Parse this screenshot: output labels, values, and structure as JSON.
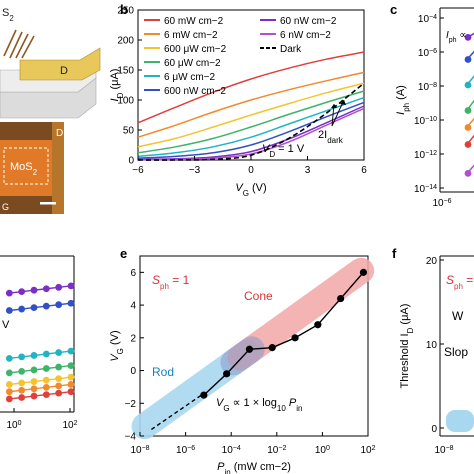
{
  "panel_a": {
    "mos2_top": "S",
    "mos2_top_sub": "2",
    "contact_label": "D",
    "chip_contact": "D",
    "chip_mos2": "MoS",
    "chip_mos2_sub": "2",
    "chip_corner": "G"
  },
  "panel_c": {
    "letter": "c",
    "ylabel": "I",
    "ylabel_sub": "ph",
    "ylabel_unit": " (A)",
    "annotation": "I",
    "annotation_sub": "ph",
    "annotation_tail": " ∝",
    "yticks": [
      {
        "base": "10",
        "exp": "−4"
      },
      {
        "base": "10",
        "exp": "−6"
      },
      {
        "base": "10",
        "exp": "−8"
      },
      {
        "base": "10",
        "exp": "−10"
      },
      {
        "base": "10",
        "exp": "−12"
      },
      {
        "base": "10",
        "exp": "−14"
      }
    ],
    "xticks": [
      {
        "base": "10",
        "exp": "−6"
      }
    ]
  },
  "panel_d": {
    "xticks": [
      {
        "base": "10",
        "exp": "0"
      },
      {
        "base": "10",
        "exp": "2"
      }
    ],
    "label_v": "V"
  },
  "panel_f": {
    "letter": "f",
    "ylabel": "Threshold I",
    "ylabel_sub": "D",
    "ylabel_unit": " (μA)",
    "sph_label": "S",
    "sph_sub": "ph",
    "sph_tail": " =",
    "text_w": "W",
    "text_slop": "Slop",
    "yticks": [
      "20",
      "10",
      "0"
    ],
    "xticks": [
      {
        "base": "10",
        "exp": "−8"
      }
    ]
  },
  "chart_data": [
    {
      "panel": "b",
      "type": "line",
      "letter": "b",
      "xlabel": "V",
      "xlabel_sub": "G",
      "xlabel_unit": " (V)",
      "ylabel": "I",
      "ylabel_sub": "D",
      "ylabel_unit": " (μA)",
      "xlim": [
        -6,
        6
      ],
      "ylim": [
        0,
        250
      ],
      "xticks": [
        "−6",
        "−3",
        "0",
        "3",
        "6"
      ],
      "yticks": [
        "0",
        "50",
        "100",
        "150",
        "200",
        "250"
      ],
      "annotation_vd": "V",
      "annotation_vd_sub": "D",
      "annotation_vd_tail": " = 1 V",
      "annotation_dark": "2I",
      "annotation_dark_sub": "dark",
      "legend": [
        {
          "label": "60 mW cm−2",
          "color": "#e0403a"
        },
        {
          "label": "6 mW cm−2",
          "color": "#f08a2c"
        },
        {
          "label": "600 μW cm−2",
          "color": "#f4c430"
        },
        {
          "label": "60 μW cm−2",
          "color": "#3db46a"
        },
        {
          "label": "6 μW cm−2",
          "color": "#1fb3c4"
        },
        {
          "label": "600 nW cm−2",
          "color": "#3050c8"
        },
        {
          "label": "60 nW cm−2",
          "color": "#7b2fc4"
        },
        {
          "label": "6 nW cm−2",
          "color": "#b04fd0"
        },
        {
          "label": "Dark",
          "color": "#000000"
        }
      ],
      "series": [
        {
          "name": "60 mW cm−2",
          "color": "#e0403a",
          "x": [
            -6,
            -4,
            -2,
            0,
            2,
            4,
            6
          ],
          "y": [
            62,
            88,
            113,
            135,
            153,
            168,
            180
          ]
        },
        {
          "name": "6 mW cm−2",
          "color": "#f08a2c",
          "x": [
            -6,
            -4,
            -2,
            0,
            2,
            4,
            6
          ],
          "y": [
            38,
            58,
            80,
            100,
            117,
            132,
            146
          ]
        },
        {
          "name": "600 μW cm−2",
          "color": "#f4c430",
          "x": [
            -6,
            -4,
            -2,
            0,
            2,
            4,
            6
          ],
          "y": [
            22,
            36,
            55,
            75,
            94,
            112,
            128
          ]
        },
        {
          "name": "60 μW cm−2",
          "color": "#3db46a",
          "x": [
            -6,
            -4,
            -2,
            0,
            2,
            4,
            6
          ],
          "y": [
            12,
            22,
            36,
            55,
            76,
            96,
            115
          ]
        },
        {
          "name": "6 μW cm−2",
          "color": "#1fb3c4",
          "x": [
            -6,
            -4,
            -2,
            0,
            2,
            4,
            6
          ],
          "y": [
            6,
            12,
            22,
            38,
            60,
            82,
            104
          ]
        },
        {
          "name": "600 nW cm−2",
          "color": "#3050c8",
          "x": [
            -6,
            -4,
            -2,
            0,
            2,
            4,
            6
          ],
          "y": [
            3,
            6,
            12,
            25,
            47,
            72,
            96
          ]
        },
        {
          "name": "60 nW cm−2",
          "color": "#7b2fc4",
          "x": [
            -6,
            -4,
            -2,
            0,
            2,
            4,
            6
          ],
          "y": [
            1,
            2,
            5,
            14,
            35,
            62,
            90
          ]
        },
        {
          "name": "6 nW cm−2",
          "color": "#b04fd0",
          "x": [
            -6,
            -4,
            -2,
            0,
            2,
            4,
            6
          ],
          "y": [
            0,
            1,
            3,
            10,
            30,
            58,
            86
          ]
        },
        {
          "name": "Dark",
          "color": "#000000",
          "dashed": true,
          "x": [
            -6,
            -4,
            -2,
            0,
            2,
            4,
            6
          ],
          "y": [
            0,
            0,
            1,
            8,
            36,
            78,
            128
          ]
        }
      ]
    },
    {
      "panel": "e",
      "type": "line",
      "letter": "e",
      "xlabel": "P",
      "xlabel_sub": "in",
      "xlabel_unit": " (mW cm−2)",
      "ylabel": "V",
      "ylabel_sub": "G",
      "ylabel_unit": " (V)",
      "xlim": [
        -8,
        2
      ],
      "ylim": [
        -4,
        7
      ],
      "xticks": [
        {
          "base": "10",
          "exp": "−8"
        },
        {
          "base": "10",
          "exp": "−6"
        },
        {
          "base": "10",
          "exp": "−4"
        },
        {
          "base": "10",
          "exp": "−2"
        },
        {
          "base": "10",
          "exp": "0"
        },
        {
          "base": "10",
          "exp": "2"
        }
      ],
      "yticks": [
        "−4",
        "−2",
        "0",
        "2",
        "4",
        "6"
      ],
      "sph_label": "S",
      "sph_sub": "ph",
      "sph_tail": " = 1",
      "label_cone": "Cone",
      "label_rod": "Rod",
      "fit_label": "V",
      "fit_sub": "G",
      "fit_tail": " ∝ 1 × log",
      "fit_log_sub": "10",
      "fit_end": " P",
      "fit_end_sub": "in",
      "series": [
        {
          "x": [
            -5.2,
            -4.2,
            -3.2,
            -2.2,
            -1.2,
            -0.2,
            0.8,
            1.8
          ],
          "y": [
            -1.5,
            -0.2,
            1.3,
            1.4,
            2.0,
            2.8,
            4.4,
            6.0
          ]
        }
      ]
    },
    {
      "panel": "d",
      "type": "line",
      "xlim": [
        -1,
        2
      ],
      "series": [
        {
          "color": "#7b2fc4",
          "x": [
            -0.5,
            0,
            0.5,
            1,
            1.5,
            2
          ],
          "y": [
            10.0,
            10.1,
            10.2,
            10.3,
            10.4,
            10.5
          ]
        },
        {
          "color": "#3050c8",
          "x": [
            -0.5,
            0,
            0.5,
            1,
            1.5,
            2
          ],
          "y": [
            8.8,
            8.9,
            9.0,
            9.1,
            9.2,
            9.3
          ]
        },
        {
          "color": "#1fb3c4",
          "x": [
            -0.5,
            0,
            0.5,
            1,
            1.5,
            2
          ],
          "y": [
            5.5,
            5.6,
            5.7,
            5.8,
            5.9,
            6.0
          ]
        },
        {
          "color": "#3db46a",
          "x": [
            -0.5,
            0,
            0.5,
            1,
            1.5,
            2
          ],
          "y": [
            4.5,
            4.6,
            4.7,
            4.8,
            4.9,
            5.0
          ]
        },
        {
          "color": "#f4c430",
          "x": [
            -0.5,
            0,
            0.5,
            1,
            1.5,
            2
          ],
          "y": [
            3.7,
            3.8,
            3.9,
            4.0,
            4.1,
            4.2
          ]
        },
        {
          "color": "#f08a2c",
          "x": [
            -0.5,
            0,
            0.5,
            1,
            1.5,
            2
          ],
          "y": [
            3.2,
            3.3,
            3.4,
            3.5,
            3.6,
            3.7
          ]
        },
        {
          "color": "#e0403a",
          "x": [
            -0.5,
            0,
            0.5,
            1,
            1.5,
            2
          ],
          "y": [
            2.7,
            2.8,
            2.9,
            3.0,
            3.1,
            3.2
          ]
        }
      ]
    },
    {
      "panel": "c",
      "type": "line",
      "series": [
        {
          "color": "#7b2fc4",
          "x": [
            0,
            1
          ],
          "y": [
            -5.2,
            -4.7
          ]
        },
        {
          "color": "#3050c8",
          "x": [
            0,
            1
          ],
          "y": [
            -6.5,
            -5.6
          ]
        },
        {
          "color": "#1fb3c4",
          "x": [
            0,
            1
          ],
          "y": [
            -8.0,
            -7.0
          ]
        },
        {
          "color": "#3db46a",
          "x": [
            0,
            1
          ],
          "y": [
            -9.5,
            -8.4
          ]
        },
        {
          "color": "#f08a2c",
          "x": [
            0,
            1
          ],
          "y": [
            -10.5,
            -9.5
          ]
        },
        {
          "color": "#e0403a",
          "x": [
            0,
            1
          ],
          "y": [
            -11.5,
            -10.5
          ]
        },
        {
          "color": "#b04fd0",
          "x": [
            0,
            1
          ],
          "y": [
            -13.2,
            -12.3
          ]
        }
      ]
    }
  ]
}
